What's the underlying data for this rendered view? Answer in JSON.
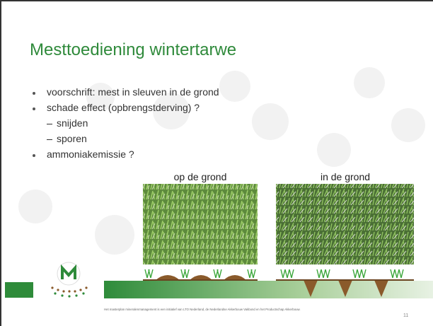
{
  "slide": {
    "title": "Mesttoediening wintertarwe",
    "bullets": [
      {
        "text": "voorschrift: mest in sleuven in de grond",
        "level": 1
      },
      {
        "text": "schade effect (opbrengstderving) ?",
        "level": 1
      },
      {
        "text": "snijden",
        "level": 2
      },
      {
        "text": "sporen",
        "level": 2
      },
      {
        "text": "ammoniakemissie ?",
        "level": 1
      }
    ],
    "captions": [
      "op de grond",
      "in de grond"
    ],
    "footer": "Het masterplan mineralenmanagement is een initiatief van LTO Nederland, de Nederlandse Akkerbouw Vakbond en het Productschap Akkerbouw.",
    "page_number": "11"
  }
}
